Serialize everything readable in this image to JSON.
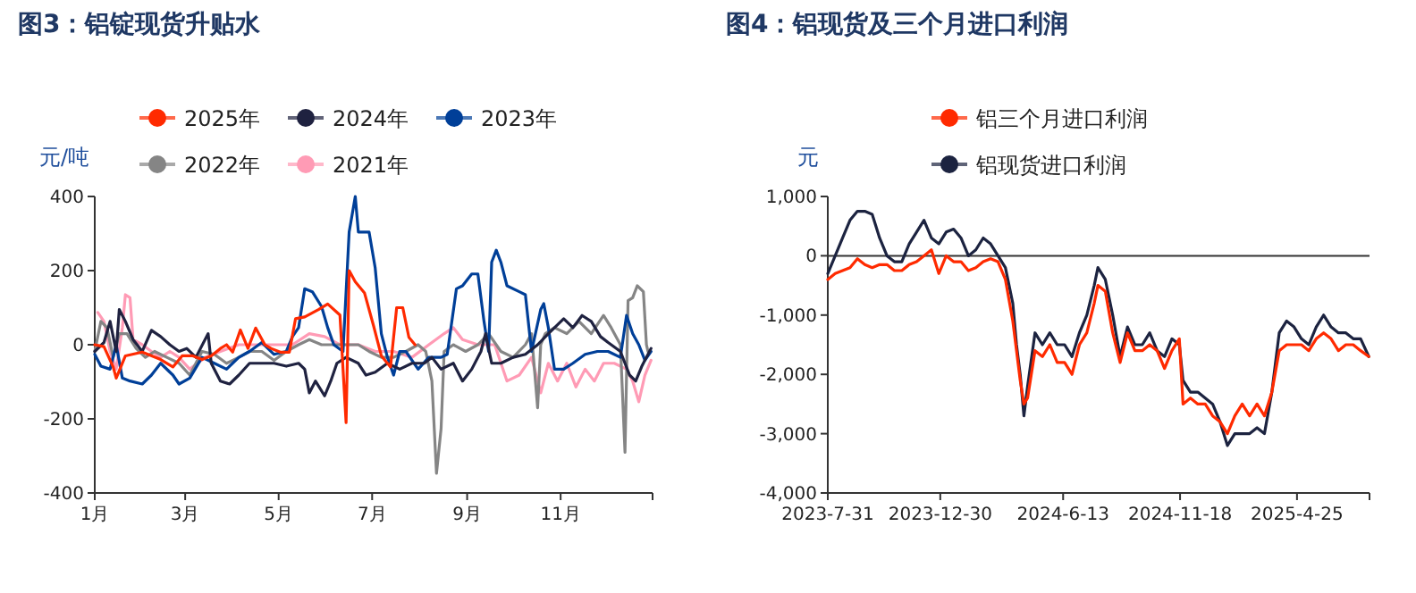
{
  "chart_data": [
    {
      "type": "line",
      "title": "图3：铝锭现货升贴水",
      "ylabel": "元/吨",
      "legend": "top",
      "xlim": [
        "--01-01",
        "--12-31"
      ],
      "ylim": [
        -400,
        400
      ],
      "yticks": [
        -400,
        -200,
        0,
        200,
        400
      ],
      "xticks": [
        {
          "value": "--01-01",
          "label": "1月"
        },
        {
          "value": "--03-01",
          "label": "3月"
        },
        {
          "value": "--05-01",
          "label": "5月"
        },
        {
          "value": "--07-01",
          "label": "7月"
        },
        {
          "value": "--09-01",
          "label": "9月"
        },
        {
          "value": "--11-01",
          "label": "11月"
        },
        {
          "value": "--12-31",
          "label": null
        }
      ],
      "series": [
        {
          "name": "2025年",
          "color": "#ff2a00",
          "x": [
            "--01-01",
            "--01-07",
            "--01-13",
            "--01-15",
            "--01-21",
            "--02-01",
            "--02-13",
            "--02-21",
            "--02-27",
            "--03-06",
            "--03-12",
            "--03-18",
            "--03-24",
            "--03-28",
            "--04-01",
            "--04-06",
            "--04-11",
            "--04-16",
            "--04-22",
            "--04-26",
            "--05-02",
            "--05-08",
            "--05-12",
            "--05-18",
            "--05-27",
            "--06-02",
            "--06-10",
            "--06-14",
            "--06-16",
            "--06-20",
            "--06-26",
            "--07-02",
            "--07-07",
            "--07-13",
            "--07-17",
            "--07-21",
            "--07-25",
            "--07-29"
          ],
          "values": [
            0,
            -5,
            -60,
            -90,
            -30,
            -20,
            -40,
            -60,
            -30,
            -30,
            -40,
            -30,
            -10,
            0,
            -20,
            40,
            -10,
            45,
            0,
            -10,
            -20,
            -20,
            70,
            75,
            95,
            110,
            80,
            -210,
            200,
            170,
            140,
            50,
            -30,
            -60,
            100,
            100,
            20,
            0
          ]
        },
        {
          "name": "2024年",
          "color": "#1f2240",
          "x": [
            "--01-01",
            "--01-07",
            "--01-11",
            "--01-15",
            "--01-17",
            "--01-21",
            "--01-26",
            "--02-01",
            "--02-07",
            "--02-13",
            "--02-19",
            "--02-25",
            "--03-02",
            "--03-08",
            "--03-16",
            "--03-18",
            "--03-24",
            "--03-30",
            "--04-05",
            "--04-12",
            "--04-20",
            "--04-28",
            "--05-06",
            "--05-14",
            "--05-18",
            "--05-21",
            "--05-25",
            "--05-31",
            "--06-04",
            "--06-08",
            "--06-14",
            "--06-22",
            "--06-27",
            "--07-03",
            "--07-11",
            "--07-19",
            "--07-27",
            "--08-04",
            "--08-09",
            "--08-15",
            "--08-23",
            "--08-29",
            "--09-04",
            "--09-10",
            "--09-13",
            "--09-17",
            "--09-23",
            "--10-01",
            "--10-09",
            "--10-17",
            "--10-24",
            "--11-03",
            "--11-09",
            "--11-15",
            "--11-21",
            "--11-27",
            "--12-02",
            "--12-10",
            "--12-16",
            "--12-20",
            "--12-24",
            "--12-30"
          ],
          "values": [
            -18,
            6,
            63,
            -18,
            95,
            63,
            14,
            -18,
            39,
            22,
            0,
            -18,
            -10,
            -34,
            30,
            -50,
            -98,
            -106,
            -82,
            -50,
            -50,
            -50,
            -58,
            -50,
            -66,
            -130,
            -98,
            -138,
            -98,
            -50,
            -34,
            -50,
            -82,
            -74,
            -50,
            -66,
            -50,
            -50,
            -34,
            -66,
            -50,
            -98,
            -66,
            -18,
            30,
            -50,
            -50,
            -34,
            -26,
            0,
            30,
            70,
            46,
            79,
            63,
            22,
            6,
            -18,
            -82,
            -98,
            -58,
            -10
          ]
        },
        {
          "name": "2023年",
          "color": "#003f98",
          "x": [
            "--01-01",
            "--01-05",
            "--01-11",
            "--01-15",
            "--01-19",
            "--01-24",
            "--02-01",
            "--02-07",
            "--02-13",
            "--02-21",
            "--02-25",
            "--03-04",
            "--03-12",
            "--03-20",
            "--03-28",
            "--04-05",
            "--04-12",
            "--04-20",
            "--04-28",
            "--05-06",
            "--05-10",
            "--05-14",
            "--05-18",
            "--05-23",
            "--05-29",
            "--06-02",
            "--06-06",
            "--06-12",
            "--06-16",
            "--06-20",
            "--06-22",
            "--06-29",
            "--07-03",
            "--07-07",
            "--07-11",
            "--07-15",
            "--07-19",
            "--07-23",
            "--07-31",
            "--08-07",
            "--08-15",
            "--08-19",
            "--08-25",
            "--08-29",
            "--09-04",
            "--09-08",
            "--09-12",
            "--09-15",
            "--09-17",
            "--09-20",
            "--09-23",
            "--09-27",
            "--10-05",
            "--10-09",
            "--10-13",
            "--10-19",
            "--10-21",
            "--10-24",
            "--10-28",
            "--11-03",
            "--11-09",
            "--11-17",
            "--11-25",
            "--12-02",
            "--12-10",
            "--12-14",
            "--12-18",
            "--12-22",
            "--12-26",
            "--12-30"
          ],
          "values": [
            -26,
            -58,
            -66,
            0,
            -90,
            -98,
            -106,
            -82,
            -50,
            -82,
            -106,
            -90,
            -34,
            -50,
            -66,
            -34,
            -18,
            6,
            -26,
            -18,
            22,
            46,
            151,
            143,
            103,
            46,
            0,
            -18,
            304,
            400,
            304,
            304,
            207,
            30,
            -34,
            -82,
            -18,
            -18,
            -66,
            -34,
            -34,
            -26,
            151,
            159,
            191,
            191,
            63,
            -18,
            223,
            255,
            223,
            159,
            143,
            135,
            -18,
            95,
            111,
            46,
            -66,
            -66,
            -50,
            -26,
            -18,
            -18,
            -34,
            79,
            30,
            0,
            -42,
            -18
          ]
        },
        {
          "name": "2022年",
          "color": "#858585",
          "x": [
            "--01-01",
            "--01-05",
            "--01-09",
            "--01-13",
            "--01-17",
            "--01-22",
            "--01-28",
            "--02-03",
            "--02-09",
            "--02-17",
            "--02-25",
            "--03-04",
            "--03-12",
            "--03-20",
            "--03-28",
            "--04-05",
            "--04-12",
            "--04-20",
            "--04-28",
            "--05-06",
            "--05-14",
            "--05-21",
            "--05-29",
            "--06-06",
            "--06-14",
            "--06-22",
            "--06-29",
            "--07-07",
            "--07-15",
            "--07-23",
            "--07-31",
            "--08-05",
            "--08-09",
            "--08-12",
            "--08-15",
            "--08-17",
            "--08-23",
            "--08-31",
            "--09-08",
            "--09-15",
            "--09-23",
            "--10-01",
            "--10-09",
            "--10-13",
            "--10-17",
            "--10-19",
            "--10-22",
            "--10-28",
            "--11-05",
            "--11-13",
            "--11-21",
            "--11-29",
            "--12-04",
            "--12-10",
            "--12-13",
            "--12-15",
            "--12-18",
            "--12-21",
            "--12-25",
            "--12-27",
            "--12-28"
          ],
          "values": [
            -18,
            63,
            46,
            -34,
            30,
            30,
            -10,
            -34,
            -18,
            -34,
            -50,
            -82,
            -18,
            -26,
            -50,
            -34,
            -18,
            -18,
            -42,
            -18,
            0,
            14,
            0,
            0,
            0,
            0,
            -18,
            -34,
            -34,
            -18,
            0,
            -18,
            -98,
            -347,
            -226,
            -18,
            0,
            -18,
            0,
            30,
            -18,
            -34,
            0,
            30,
            -170,
            0,
            30,
            46,
            30,
            63,
            30,
            79,
            46,
            0,
            -290,
            119,
            127,
            159,
            143,
            0,
            -18
          ]
        },
        {
          "name": "2021年",
          "color": "#ff9bb5",
          "x": [
            "--01-03",
            "--01-07",
            "--01-11",
            "--01-15",
            "--01-19",
            "--01-21",
            "--01-24",
            "--01-26",
            "--02-01",
            "--02-07",
            "--02-13",
            "--02-19",
            "--02-25",
            "--03-04",
            "--03-14",
            "--03-24",
            "--04-05",
            "--04-16",
            "--04-28",
            "--05-10",
            "--05-21",
            "--05-31",
            "--06-10",
            "--06-22",
            "--07-03",
            "--07-15",
            "--07-27",
            "--08-07",
            "--08-17",
            "--08-23",
            "--08-29",
            "--09-08",
            "--09-19",
            "--09-27",
            "--10-05",
            "--10-13",
            "--10-19",
            "--10-24",
            "--10-30",
            "--11-05",
            "--11-11",
            "--11-17",
            "--11-23",
            "--11-29",
            "--12-06",
            "--12-14",
            "--12-18",
            "--12-22",
            "--12-26",
            "--12-30"
          ],
          "values": [
            87,
            63,
            -18,
            -66,
            46,
            135,
            127,
            14,
            0,
            -18,
            -34,
            -18,
            -34,
            -66,
            -34,
            -18,
            0,
            0,
            0,
            0,
            30,
            22,
            0,
            0,
            -18,
            -18,
            -34,
            0,
            30,
            46,
            14,
            0,
            0,
            -98,
            -82,
            -34,
            -130,
            -50,
            -98,
            -50,
            -114,
            -66,
            -98,
            -50,
            -50,
            -66,
            -98,
            -154,
            -82,
            -42
          ]
        }
      ]
    },
    {
      "type": "line",
      "title": "图4：铝现货及三个月进口利润",
      "ylabel": "元",
      "legend": "top",
      "xlim": [
        "2023-07-31",
        "2025-08-01"
      ],
      "ylim": [
        -4000,
        1000
      ],
      "yticks": [
        {
          "value": -4000,
          "label": "-4,000"
        },
        {
          "value": -3000,
          "label": "-3,000"
        },
        {
          "value": -2000,
          "label": "-2,000"
        },
        {
          "value": -1000,
          "label": "-1,000"
        },
        0,
        {
          "value": 1000,
          "label": "1,000"
        }
      ],
      "xticks": [
        {
          "value": "2023-07-31",
          "label": "2023-7-31"
        },
        {
          "value": "2023-12-30",
          "label": "2023-12-30"
        },
        {
          "value": "2024-06-13",
          "label": "2024-6-13"
        },
        {
          "value": "2024-11-18",
          "label": "2024-11-18"
        },
        {
          "value": "2025-04-25",
          "label": "2025-4-25"
        },
        {
          "value": "2025-08-01",
          "label": null
        }
      ],
      "ref_lines": [
        {
          "axis": "y",
          "value": 0,
          "color": "#333333"
        }
      ],
      "series": [
        {
          "name": "铝三个月进口利润",
          "color": "#ff2a00",
          "values": [
            -400,
            -300,
            -250,
            -200,
            -50,
            -150,
            -200,
            -150,
            -150,
            -250,
            -250,
            -150,
            -100,
            0,
            100,
            -300,
            0,
            -100,
            -100,
            -250,
            -200,
            -100,
            -50,
            -100,
            -400,
            -1100,
            -1600,
            -2100,
            -2500,
            -2400,
            -1600,
            -1700,
            -1500,
            -1800,
            -1800,
            -2000,
            -1500,
            -1300,
            -800,
            -500,
            -600,
            -1300,
            -1800,
            -1300,
            -1600,
            -1600,
            -1500,
            -1600,
            -1900,
            -1600,
            -1400,
            -2500,
            -2400,
            -2500,
            -2500,
            -2700,
            -2800,
            -3000,
            -2700,
            -2500,
            -2700,
            -2500,
            -2700,
            -2300,
            -1600,
            -1500,
            -1500,
            -1500,
            -1600,
            -1400,
            -1300,
            -1400,
            -1600,
            -1500,
            -1500,
            -1600,
            -1700
          ]
        },
        {
          "name": "铝现货进口利润",
          "color": "#1c2340",
          "values": [
            -300,
            0,
            300,
            600,
            750,
            750,
            700,
            300,
            0,
            -100,
            -100,
            200,
            400,
            600,
            300,
            200,
            400,
            450,
            300,
            0,
            100,
            300,
            200,
            0,
            -200,
            -800,
            -1500,
            -2000,
            -2700,
            -2200,
            -1300,
            -1500,
            -1300,
            -1500,
            -1500,
            -1700,
            -1300,
            -1000,
            -500,
            -200,
            -400,
            -1000,
            -1700,
            -1200,
            -1500,
            -1500,
            -1300,
            -1600,
            -1700,
            -1400,
            -1500,
            -2100,
            -2300,
            -2300,
            -2400,
            -2500,
            -2800,
            -3200,
            -3000,
            -3000,
            -3000,
            -2900,
            -3000,
            -2300,
            -1300,
            -1100,
            -1200,
            -1400,
            -1500,
            -1200,
            -1000,
            -1200,
            -1300,
            -1300,
            -1400,
            -1400,
            -1700
          ]
        }
      ],
      "x": [
        "2023-07-31",
        "2023-08-10",
        "2023-08-20",
        "2023-08-30",
        "2023-09-09",
        "2023-09-19",
        "2023-09-29",
        "2023-10-09",
        "2023-10-19",
        "2023-10-29",
        "2023-11-08",
        "2023-11-18",
        "2023-11-28",
        "2023-12-08",
        "2023-12-18",
        "2023-12-28",
        "2024-01-07",
        "2024-01-17",
        "2024-01-27",
        "2024-02-06",
        "2024-02-16",
        "2024-02-26",
        "2024-03-07",
        "2024-03-17",
        "2024-03-27",
        "2024-04-06",
        "2024-04-11",
        "2024-04-16",
        "2024-04-21",
        "2024-04-26",
        "2024-05-06",
        "2024-05-16",
        "2024-05-26",
        "2024-06-05",
        "2024-06-15",
        "2024-06-25",
        "2024-07-05",
        "2024-07-15",
        "2024-07-25",
        "2024-07-30",
        "2024-08-09",
        "2024-08-19",
        "2024-08-29",
        "2024-09-08",
        "2024-09-18",
        "2024-09-28",
        "2024-10-08",
        "2024-10-18",
        "2024-10-28",
        "2024-11-07",
        "2024-11-17",
        "2024-11-22",
        "2024-12-02",
        "2024-12-12",
        "2024-12-22",
        "2025-01-01",
        "2025-01-11",
        "2025-01-21",
        "2025-01-31",
        "2025-02-10",
        "2025-02-20",
        "2025-03-02",
        "2025-03-12",
        "2025-03-22",
        "2025-04-01",
        "2025-04-11",
        "2025-04-21",
        "2025-05-01",
        "2025-05-11",
        "2025-05-21",
        "2025-05-31",
        "2025-06-10",
        "2025-06-20",
        "2025-06-30",
        "2025-07-10",
        "2025-07-20",
        "2025-07-31"
      ]
    }
  ]
}
